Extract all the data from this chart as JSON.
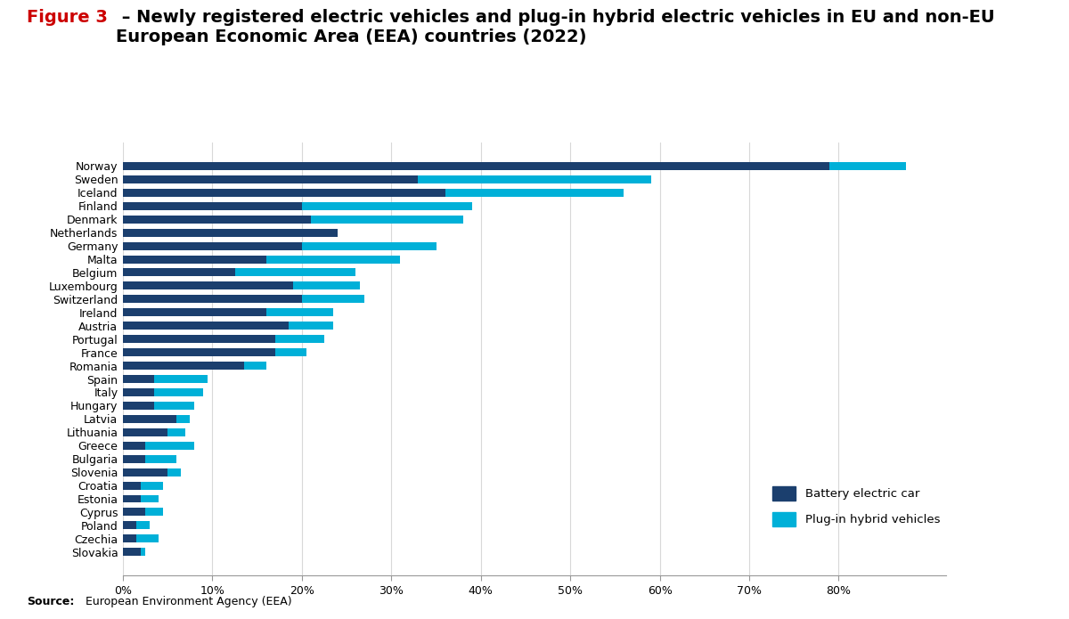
{
  "title_red": "Figure 3",
  "title_rest": " – Newly registered electric vehicles and plug-in hybrid electric vehicles in EU and non-EU\nEuropean Economic Area (EEA) countries (2022)",
  "source_bold": "Source:",
  "source_rest": " European Environment Agency (EEA)",
  "countries": [
    "Norway",
    "Sweden",
    "Iceland",
    "Finland",
    "Denmark",
    "Netherlands",
    "Germany",
    "Malta",
    "Belgium",
    "Luxembourg",
    "Switzerland",
    "Ireland",
    "Austria",
    "Portugal",
    "France",
    "Romania",
    "Spain",
    "Italy",
    "Hungary",
    "Latvia",
    "Lithuania",
    "Greece",
    "Bulgaria",
    "Slovenia",
    "Croatia",
    "Estonia",
    "Cyprus",
    "Poland",
    "Czechia",
    "Slovakia"
  ],
  "bev": [
    79.0,
    33.0,
    36.0,
    20.0,
    21.0,
    24.0,
    20.0,
    16.0,
    12.5,
    19.0,
    20.0,
    16.0,
    18.5,
    17.0,
    17.0,
    13.5,
    3.5,
    3.5,
    3.5,
    6.0,
    5.0,
    2.5,
    2.5,
    5.0,
    2.0,
    2.0,
    2.5,
    1.5,
    1.5,
    2.0
  ],
  "phev": [
    8.5,
    26.0,
    20.0,
    19.0,
    17.0,
    0.0,
    15.0,
    15.0,
    13.5,
    7.5,
    7.0,
    7.5,
    5.0,
    5.5,
    3.5,
    2.5,
    6.0,
    5.5,
    4.5,
    1.5,
    2.0,
    5.5,
    3.5,
    1.5,
    2.5,
    2.0,
    2.0,
    1.5,
    2.5,
    0.5
  ],
  "bev_color": "#1b3f6e",
  "phev_color": "#00b0d8",
  "grid_color": "#d8d8d8",
  "spine_color": "#999999",
  "xlim_max": 92,
  "xtick_vals": [
    0,
    10,
    20,
    30,
    40,
    50,
    60,
    70,
    80
  ],
  "xtick_labels": [
    "0%",
    "10%",
    "20%",
    "30%",
    "40%",
    "50%",
    "60%",
    "70%",
    "80%"
  ],
  "legend_bev": "Battery electric car",
  "legend_phev": "Plug-in hybrid vehicles",
  "bar_height": 0.6,
  "title_fontsize": 14,
  "label_fontsize": 9,
  "tick_fontsize": 9,
  "legend_fontsize": 9.5
}
